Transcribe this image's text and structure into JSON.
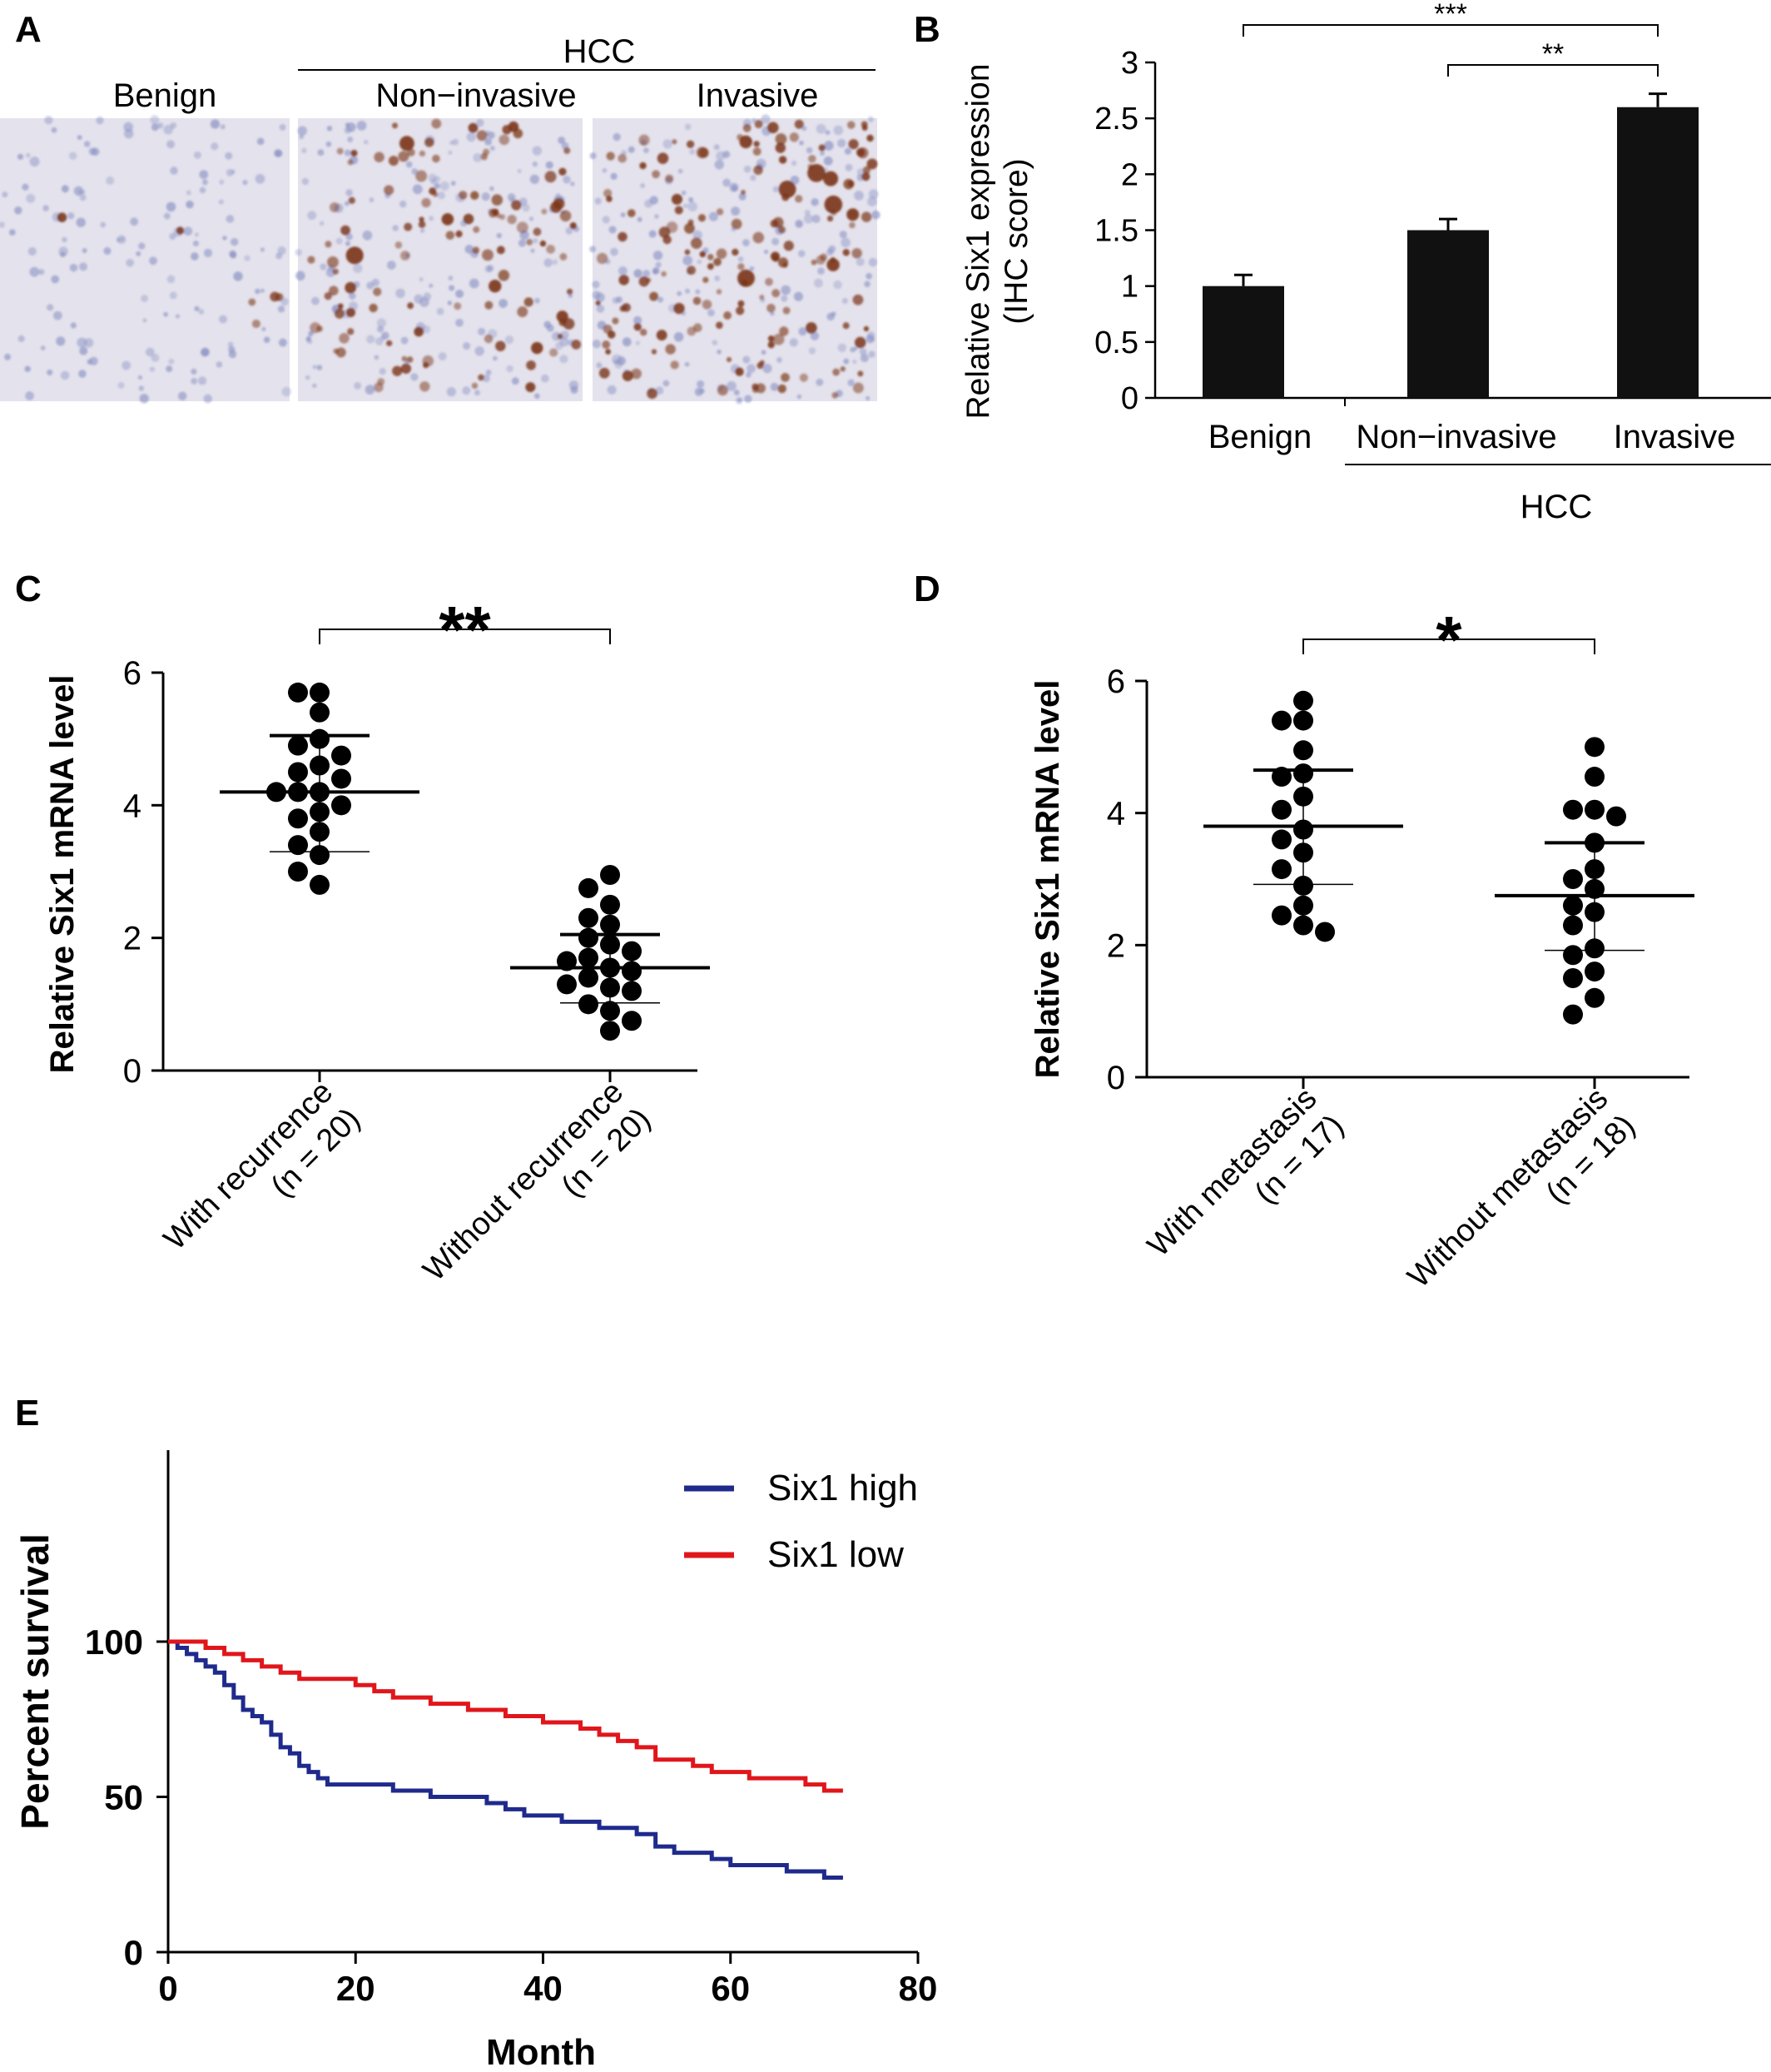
{
  "panel_labels": {
    "a": "A",
    "b": "B",
    "c": "C",
    "d": "D",
    "e": "E"
  },
  "panel_a": {
    "group_label": "HCC",
    "images": [
      {
        "caption": "Benign",
        "stain_level": "low"
      },
      {
        "caption": "Non−invasive",
        "stain_level": "medium"
      },
      {
        "caption": "Invasive",
        "stain_level": "high"
      }
    ],
    "colors": {
      "background": "#e4e2ec",
      "hematoxylin": "#8a92c4",
      "dab": "#7a3416"
    }
  },
  "chart_data": [
    {
      "panel": "B",
      "type": "bar",
      "categories": [
        "Benign",
        "Non−invasive",
        "Invasive"
      ],
      "values": [
        1.0,
        1.5,
        2.6
      ],
      "errors": [
        0.1,
        0.1,
        0.12
      ],
      "ylabel_line1": "Relative Six1 expression",
      "ylabel_line2": "(IHC score)",
      "ylim": [
        0,
        3
      ],
      "yticks": [
        "0",
        "0.5",
        "1",
        "1.5",
        "2",
        "2.5",
        "3"
      ],
      "group_label": "HCC",
      "significance": [
        {
          "from": 0,
          "to": 2,
          "label": "***"
        },
        {
          "from": 1,
          "to": 2,
          "label": "**"
        }
      ],
      "bar_color": "#111111"
    },
    {
      "panel": "C",
      "type": "scatter",
      "ylabel": "Relative Six1 mRNA level",
      "ylim": [
        0,
        6
      ],
      "yticks": [
        "0",
        "2",
        "4",
        "6"
      ],
      "groups": [
        {
          "label_line1": "With recurrence",
          "label_line2": "(n = 20)",
          "mean": 4.2,
          "sd_low": 3.3,
          "sd_high": 5.05,
          "values": [
            5.7,
            5.7,
            5.4,
            5.0,
            4.9,
            4.75,
            4.6,
            4.5,
            4.4,
            4.2,
            4.2,
            4.2,
            4.0,
            3.9,
            3.8,
            3.6,
            3.4,
            3.25,
            3.0,
            2.8
          ]
        },
        {
          "label_line1": "Without recurrence",
          "label_line2": "(n = 20)",
          "mean": 1.55,
          "sd_low": 1.02,
          "sd_high": 2.05,
          "values": [
            2.95,
            2.75,
            2.5,
            2.3,
            2.2,
            2.0,
            1.9,
            1.8,
            1.7,
            1.65,
            1.55,
            1.5,
            1.4,
            1.3,
            1.25,
            1.2,
            1.0,
            0.9,
            0.75,
            0.6
          ]
        }
      ],
      "significance": {
        "label": "**"
      }
    },
    {
      "panel": "D",
      "type": "scatter",
      "ylabel": "Relative Six1 mRNA level",
      "ylim": [
        0,
        6
      ],
      "yticks": [
        "0",
        "2",
        "4",
        "6"
      ],
      "groups": [
        {
          "label_line1": "With metastasis",
          "label_line2": "(n = 17)",
          "mean": 3.8,
          "sd_low": 2.92,
          "sd_high": 4.65,
          "values": [
            5.7,
            5.4,
            5.4,
            4.95,
            4.6,
            4.55,
            4.25,
            4.05,
            3.75,
            3.6,
            3.4,
            3.15,
            2.9,
            2.6,
            2.45,
            2.3,
            2.2
          ]
        },
        {
          "label_line1": "Without metastasis",
          "label_line2": "(n = 18)",
          "mean": 2.75,
          "sd_low": 1.92,
          "sd_high": 3.55,
          "values": [
            5.0,
            4.55,
            4.05,
            4.05,
            3.95,
            3.55,
            3.15,
            3.0,
            2.85,
            2.6,
            2.5,
            2.3,
            1.95,
            1.85,
            1.6,
            1.5,
            1.2,
            0.95
          ]
        }
      ],
      "significance": {
        "label": "*"
      }
    },
    {
      "panel": "E",
      "type": "line",
      "xlabel": "Month",
      "ylabel": "Percent survival",
      "xlim": [
        0,
        80
      ],
      "ylim": [
        0,
        110
      ],
      "xticks": [
        "0",
        "20",
        "40",
        "60",
        "80"
      ],
      "yticks": [
        "0",
        "50",
        "100"
      ],
      "legend_position": "top-right",
      "series": [
        {
          "name": "Six1 high",
          "color": "#1f2a8c",
          "x": [
            0,
            1,
            2,
            3,
            4,
            5,
            6,
            7,
            8,
            9,
            10,
            11,
            12,
            13,
            14,
            15,
            16,
            17,
            18,
            24,
            28,
            30,
            34,
            36,
            38,
            42,
            46,
            50,
            52,
            54,
            58,
            60,
            66,
            68,
            70,
            72
          ],
          "y": [
            100,
            98,
            96,
            94,
            92,
            90,
            86,
            82,
            78,
            76,
            74,
            70,
            66,
            64,
            60,
            58,
            56,
            54,
            54,
            52,
            50,
            50,
            48,
            46,
            44,
            42,
            40,
            38,
            34,
            32,
            30,
            28,
            26,
            26,
            24,
            24
          ]
        },
        {
          "name": "Six1 low",
          "color": "#e0161b",
          "x": [
            0,
            2,
            4,
            6,
            8,
            10,
            12,
            14,
            18,
            20,
            22,
            24,
            28,
            32,
            36,
            40,
            44,
            46,
            48,
            50,
            52,
            56,
            58,
            60,
            62,
            66,
            68,
            70,
            72
          ],
          "y": [
            100,
            100,
            98,
            96,
            94,
            92,
            90,
            88,
            88,
            86,
            84,
            82,
            80,
            78,
            76,
            74,
            72,
            70,
            68,
            66,
            62,
            60,
            58,
            58,
            56,
            56,
            54,
            52,
            52
          ]
        }
      ]
    }
  ]
}
